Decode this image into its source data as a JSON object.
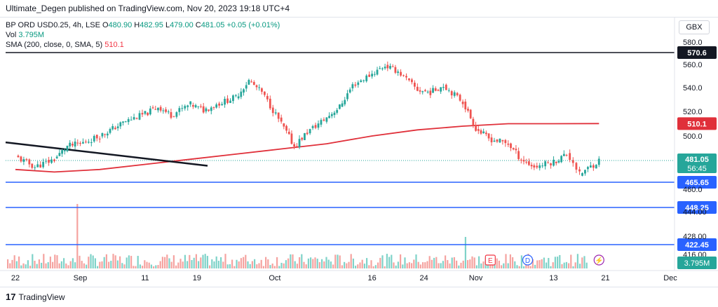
{
  "publisher_line": "Ultimate_Degen published on TradingView.com, Nov 20, 2023 19:18 UTC+4",
  "currency_button": "GBX",
  "legend": {
    "symbol": "BP ORD USD0.25, 4h, LSE",
    "ohlc": {
      "o_label": "O",
      "o": "480.90",
      "h_label": "H",
      "h": "482.95",
      "l_label": "L",
      "l": "479.00",
      "c_label": "C",
      "c": "481.05",
      "change": "+0.05 (+0.01%)"
    },
    "vol_label": "Vol",
    "vol_value": "3.795M",
    "sma_label": "SMA (200, close, 0, SMA, 5)",
    "sma_value": "510.1"
  },
  "footer": {
    "logo_mark": "17",
    "logo_text": "TradingView"
  },
  "colors": {
    "up": "#26a69a",
    "down": "#ef5350",
    "sma": "#e0303a",
    "hline_blue": "#2962ff",
    "hline_black": "#131722",
    "trend": "#131722"
  },
  "chart_data": {
    "type": "candlestick",
    "price_axis_ticks": [
      "580.0",
      "560.0",
      "540.0",
      "520.0",
      "500.0",
      "460.0",
      "444.00",
      "428.00",
      "416.00"
    ],
    "time_axis_ticks": [
      "22",
      "Sep",
      "11",
      "19",
      "Oct",
      "16",
      "24",
      "Nov",
      "13",
      "21",
      "Dec"
    ],
    "horizontal_levels": [
      {
        "price": 570.6,
        "label": "570.6",
        "color": "#131722"
      },
      {
        "price": 465.65,
        "label": "465.65",
        "color": "#2962ff"
      },
      {
        "price": 448.25,
        "label": "448.25",
        "color": "#2962ff"
      },
      {
        "price": 422.45,
        "label": "422.45",
        "color": "#2962ff"
      }
    ],
    "last_price": {
      "price": 481.05,
      "label": "481.05",
      "countdown": "56:45"
    },
    "sma": {
      "label": "510.1",
      "value": 510.1
    },
    "volume_label": "3.795M",
    "event_markers": [
      "E",
      "D",
      "⚡"
    ],
    "trendline": {
      "from": {
        "date": "Aug 22",
        "price": 494
      },
      "to": {
        "date": "Sep 22",
        "price": 478
      }
    },
    "price_path": [
      [
        "Aug 22",
        484
      ],
      [
        "Aug 25",
        476
      ],
      [
        "Aug 28",
        482
      ],
      [
        "Aug 30",
        492
      ],
      [
        "Sep 1",
        494
      ],
      [
        "Sep 4",
        500
      ],
      [
        "Sep 6",
        506
      ],
      [
        "Sep 8",
        512
      ],
      [
        "Sep 11",
        518
      ],
      [
        "Sep 13",
        524
      ],
      [
        "Sep 15",
        517
      ],
      [
        "Sep 18",
        526
      ],
      [
        "Sep 20",
        521
      ],
      [
        "Sep 22",
        526
      ],
      [
        "Sep 25",
        532
      ],
      [
        "Sep 27",
        546
      ],
      [
        "Sep 29",
        536
      ],
      [
        "Oct 2",
        510
      ],
      [
        "Oct 4",
        492
      ],
      [
        "Oct 6",
        503
      ],
      [
        "Oct 9",
        515
      ],
      [
        "Oct 11",
        524
      ],
      [
        "Oct 13",
        542
      ],
      [
        "Oct 16",
        552
      ],
      [
        "Oct 18",
        559
      ],
      [
        "Oct 20",
        554
      ],
      [
        "Oct 23",
        538
      ],
      [
        "Oct 25",
        536
      ],
      [
        "Oct 27",
        542
      ],
      [
        "Oct 30",
        528
      ],
      [
        "Nov 1",
        506
      ],
      [
        "Nov 3",
        498
      ],
      [
        "Nov 6",
        494
      ],
      [
        "Nov 8",
        482
      ],
      [
        "Nov 10",
        476
      ],
      [
        "Nov 13",
        480
      ],
      [
        "Nov 15",
        486
      ],
      [
        "Nov 16",
        480
      ],
      [
        "Nov 17",
        470
      ],
      [
        "Nov 20",
        481
      ]
    ],
    "sma_path": [
      [
        "Aug 22",
        474
      ],
      [
        "Aug 28",
        472
      ],
      [
        "Sep 4",
        474
      ],
      [
        "Sep 11",
        478
      ],
      [
        "Sep 18",
        482
      ],
      [
        "Sep 25",
        486
      ],
      [
        "Oct 2",
        490
      ],
      [
        "Oct 9",
        494
      ],
      [
        "Oct 16",
        500
      ],
      [
        "Oct 23",
        505
      ],
      [
        "Oct 30",
        508
      ],
      [
        "Nov 6",
        510
      ],
      [
        "Nov 13",
        510
      ],
      [
        "Nov 20",
        510.1
      ]
    ]
  }
}
